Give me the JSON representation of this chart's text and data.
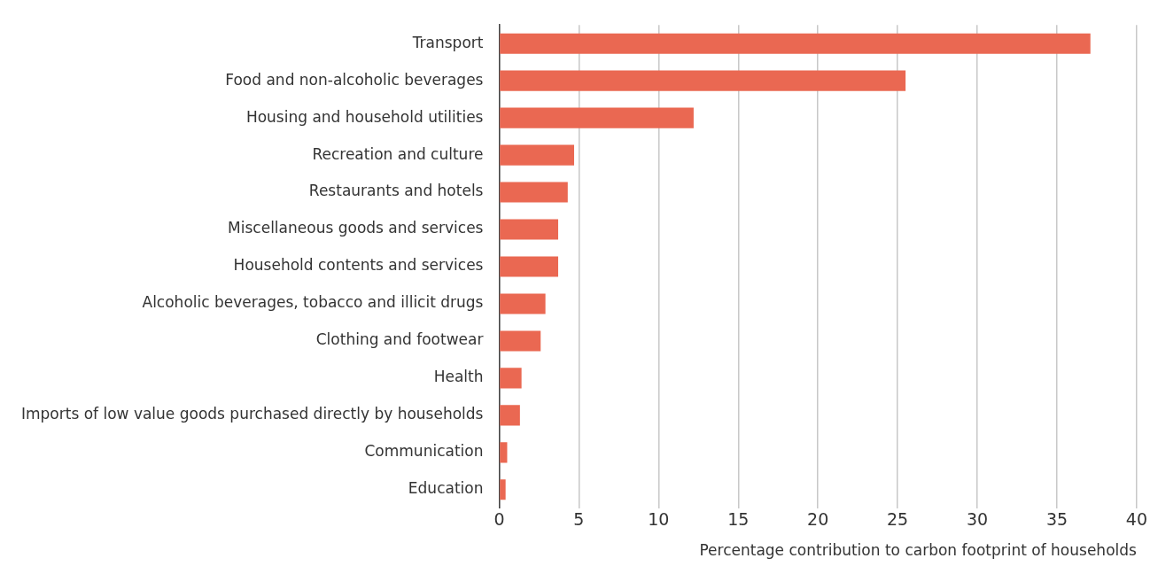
{
  "chart_data": {
    "type": "bar",
    "orientation": "horizontal",
    "xlabel": "Percentage contribution to carbon footprint of households",
    "categories": [
      "Transport",
      "Food and non-alcoholic beverages",
      "Housing and household utilities",
      "Recreation and culture",
      "Restaurants and hotels",
      "Miscellaneous goods and services",
      "Household contents and services",
      "Alcoholic beverages, tobacco and illicit drugs",
      "Clothing and footwear",
      "Health",
      "Imports of low value goods purchased directly by households",
      "Communication",
      "Education"
    ],
    "values": [
      37.1,
      25.5,
      12.2,
      4.7,
      4.3,
      3.7,
      3.7,
      2.9,
      2.6,
      1.4,
      1.3,
      0.5,
      0.4
    ],
    "color": "#ea6852",
    "xlim": [
      0,
      40
    ],
    "xticks": [
      0,
      5,
      10,
      15,
      20,
      25,
      30,
      35,
      40
    ],
    "grid": "x",
    "legend": false
  }
}
